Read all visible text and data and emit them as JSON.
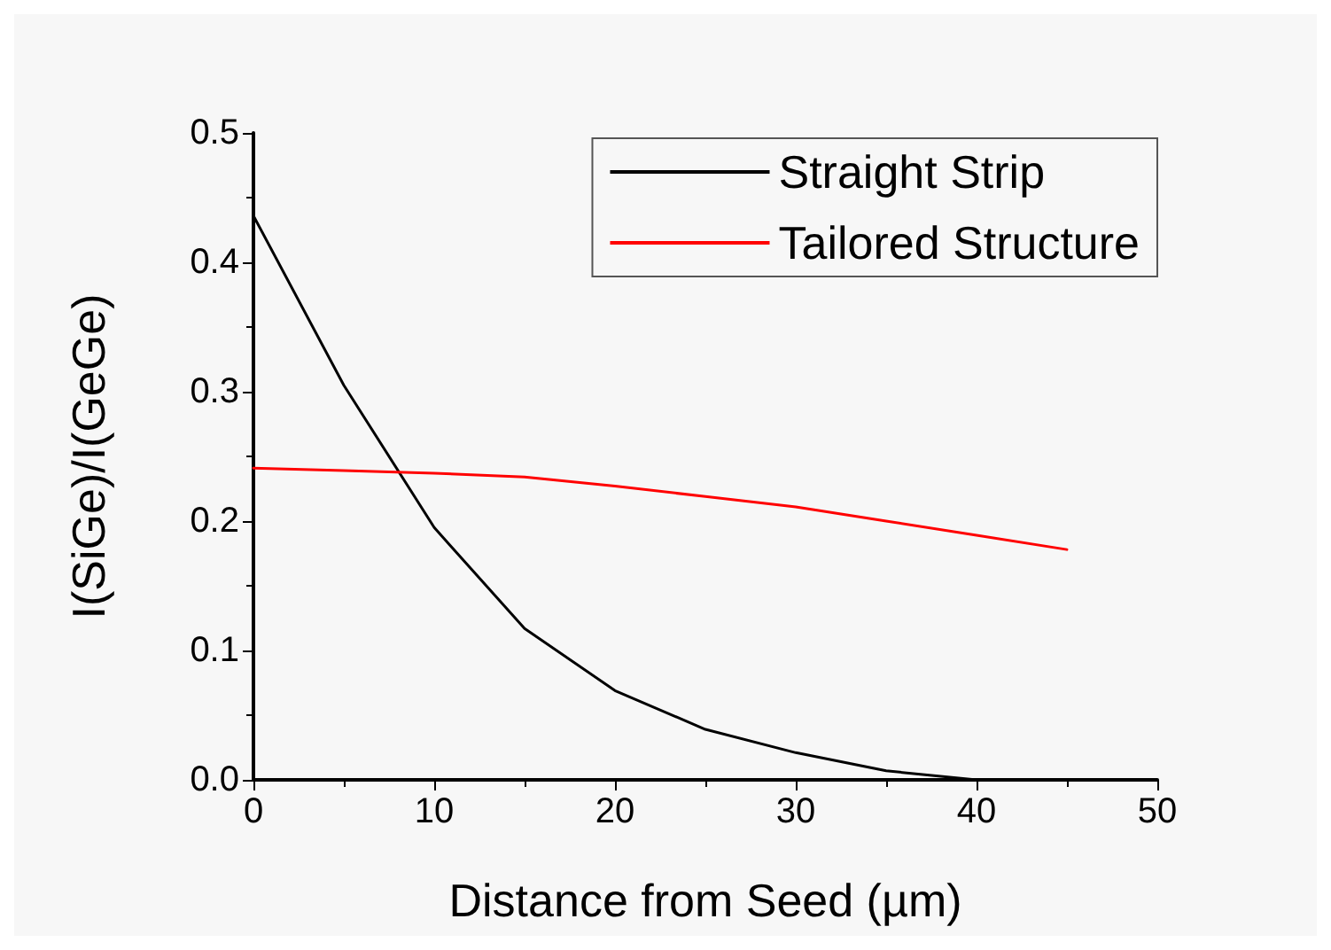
{
  "chart_data": {
    "type": "line",
    "xlabel": "Distance from Seed (µm)",
    "ylabel": "I(SiGe)/I(GeGe)",
    "xlim": [
      0,
      50
    ],
    "xticks": [
      0,
      10,
      20,
      30,
      40,
      50
    ],
    "ylim": [
      0,
      0.5
    ],
    "yticks": [
      {
        "value": 0,
        "label": "0.0"
      },
      0.1,
      0.2,
      0.3,
      0.4,
      0.5
    ],
    "grid": false,
    "legend": "top right",
    "marker": "none",
    "line_style": "solid",
    "series": [
      {
        "name": "Straight Strip",
        "color": "#000000",
        "x": [
          0,
          5,
          10,
          15,
          20,
          25,
          30,
          35,
          40
        ],
        "values": [
          0.436,
          0.305,
          0.195,
          0.117,
          0.069,
          0.039,
          0.021,
          0.007,
          0.0
        ]
      },
      {
        "name": "Tailored Structure",
        "color": "#ff0000",
        "x": [
          0,
          5,
          10,
          15,
          20,
          25,
          30,
          35,
          40,
          45
        ],
        "values": [
          0.241,
          0.239,
          0.237,
          0.234,
          0.227,
          0.219,
          0.211,
          0.2,
          0.189,
          0.178
        ]
      }
    ]
  }
}
